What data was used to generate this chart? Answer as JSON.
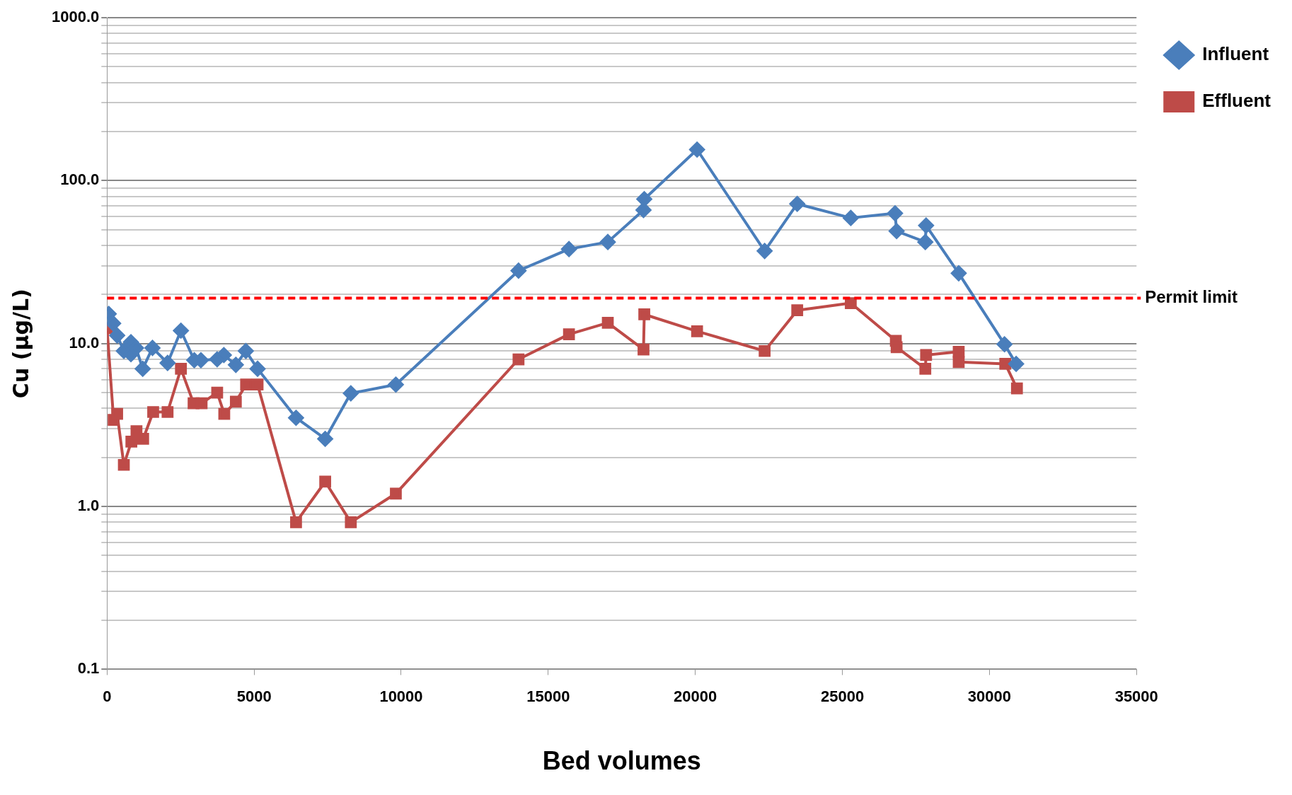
{
  "chart_data": {
    "type": "line",
    "xlabel": "Bed volumes",
    "ylabel": "Cu (µg/L)",
    "log": "y",
    "grid": "y",
    "legend": "right",
    "line_style": "solid",
    "xlim": [
      0,
      35000
    ],
    "xticks": [
      0,
      5000,
      10000,
      15000,
      20000,
      25000,
      30000,
      35000
    ],
    "ylim": [
      0.1,
      1000
    ],
    "yticks": [
      {
        "value": 0.1,
        "label": "0.1"
      },
      {
        "value": 0.2,
        "label": null
      },
      {
        "value": 0.3,
        "label": null
      },
      {
        "value": 0.4,
        "label": null
      },
      {
        "value": 0.5,
        "label": null
      },
      {
        "value": 0.6,
        "label": null
      },
      {
        "value": 0.7,
        "label": null
      },
      {
        "value": 0.8,
        "label": null
      },
      {
        "value": 0.9,
        "label": null
      },
      {
        "value": 1,
        "label": "1.0"
      },
      {
        "value": 2,
        "label": null
      },
      {
        "value": 3,
        "label": null
      },
      {
        "value": 4,
        "label": null
      },
      {
        "value": 5,
        "label": null
      },
      {
        "value": 6,
        "label": null
      },
      {
        "value": 7,
        "label": null
      },
      {
        "value": 8,
        "label": null
      },
      {
        "value": 9,
        "label": null
      },
      {
        "value": 10,
        "label": "10.0"
      },
      {
        "value": 20,
        "label": null
      },
      {
        "value": 30,
        "label": null
      },
      {
        "value": 40,
        "label": null
      },
      {
        "value": 50,
        "label": null
      },
      {
        "value": 60,
        "label": null
      },
      {
        "value": 70,
        "label": null
      },
      {
        "value": 80,
        "label": null
      },
      {
        "value": 90,
        "label": null
      },
      {
        "value": 100,
        "label": "100.0"
      },
      {
        "value": 200,
        "label": null
      },
      {
        "value": 300,
        "label": null
      },
      {
        "value": 400,
        "label": null
      },
      {
        "value": 500,
        "label": null
      },
      {
        "value": 600,
        "label": null
      },
      {
        "value": 700,
        "label": null
      },
      {
        "value": 800,
        "label": null
      },
      {
        "value": 900,
        "label": null
      },
      {
        "value": 1000,
        "label": "1000.0"
      }
    ],
    "series": [
      {
        "name": "Influent",
        "color": "#4a7ebb",
        "marker": "diamond",
        "x": [
          57,
          208,
          344,
          571,
          812,
          812,
          986,
          1213,
          1545,
          2058,
          2512,
          2965,
          3192,
          3744,
          3971,
          4379,
          4719,
          5118,
          6426,
          7417,
          8288,
          9819,
          13990,
          15705,
          17025,
          18239,
          18265,
          20060,
          22357,
          23465,
          25286,
          26791,
          26844,
          27820,
          27846,
          28955,
          30512,
          30908
        ],
        "values": [
          15.2,
          13.3,
          11.2,
          9.0,
          10.2,
          8.6,
          9.4,
          7.0,
          9.4,
          7.6,
          12.0,
          7.9,
          7.9,
          8.0,
          8.5,
          7.4,
          9.0,
          7.0,
          3.5,
          2.6,
          4.95,
          5.6,
          28,
          38,
          42,
          66,
          77,
          155,
          37,
          72,
          59,
          63,
          49,
          42,
          53,
          27,
          9.9,
          7.5
        ]
      },
      {
        "name": "Effluent",
        "color": "#be4b48",
        "marker": "square",
        "x": [
          0,
          223,
          344,
          571,
          827,
          1001,
          1228,
          1568,
          2058,
          2512,
          2942,
          3215,
          3744,
          3985,
          4379,
          4727,
          5118,
          6426,
          7417,
          8288,
          9819,
          13990,
          15705,
          17025,
          18239,
          18265,
          20060,
          22357,
          23465,
          25286,
          26817,
          26844,
          27820,
          27846,
          28955,
          28955,
          30538,
          30935
        ],
        "values": [
          12.4,
          3.4,
          3.7,
          1.8,
          2.5,
          2.9,
          2.6,
          3.8,
          3.8,
          7.0,
          4.3,
          4.3,
          5.0,
          3.7,
          4.4,
          5.6,
          5.6,
          0.8,
          1.42,
          0.8,
          1.2,
          8.0,
          11.4,
          13.4,
          9.2,
          15.1,
          11.9,
          9.0,
          16,
          17.7,
          10.4,
          9.5,
          7.0,
          8.5,
          8.9,
          7.7,
          7.5,
          5.3
        ]
      }
    ],
    "ref_lines": [
      {
        "axis": "y",
        "value": 19,
        "label": "Permit limit",
        "color": "#ff0000",
        "line_style": "dashed"
      }
    ]
  }
}
